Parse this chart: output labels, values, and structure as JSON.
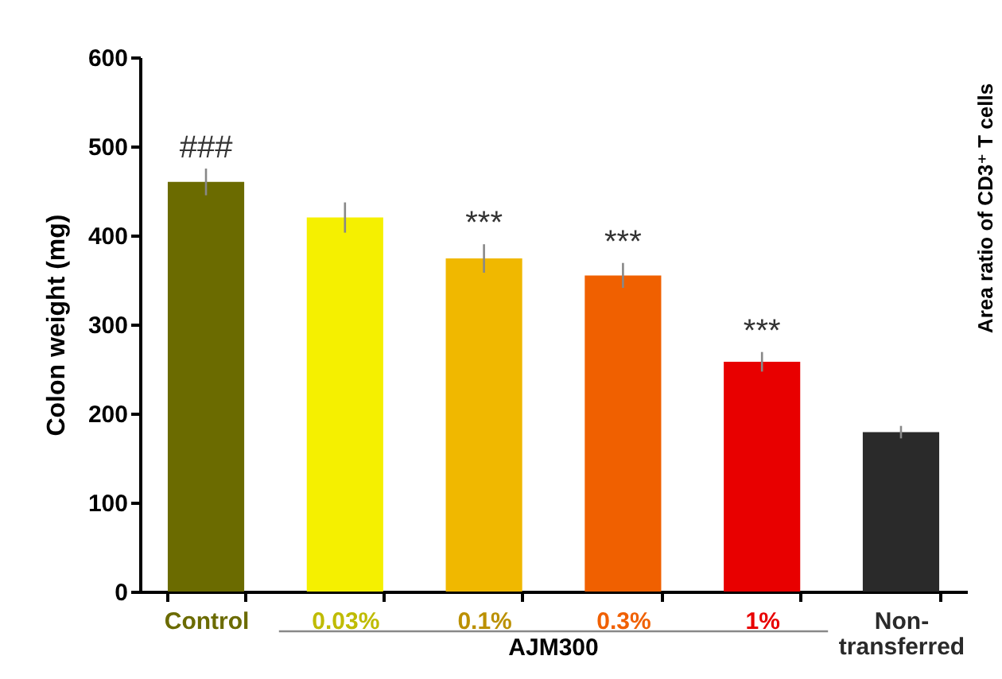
{
  "chart_data": {
    "type": "bar",
    "ylabel": "Colon weight (mg)",
    "categories": [
      "Control",
      "0.03%",
      "0.1%",
      "0.3%",
      "1%",
      "Non-\ntransferred"
    ],
    "values": [
      460,
      420,
      374,
      355,
      258,
      179
    ],
    "errors": [
      15,
      17,
      16,
      14,
      11,
      7
    ],
    "colors": [
      "#6b6b00",
      "#f5f000",
      "#f0b800",
      "#f06000",
      "#e80000",
      "#2a2a2a"
    ],
    "ylim": [
      0,
      600
    ],
    "yticks": [
      0,
      100,
      200,
      300,
      400,
      500,
      600
    ],
    "grid": false,
    "annotations": [
      {
        "text": "###",
        "x": "Control",
        "y": 460
      },
      {
        "text": "***",
        "x": "0.1%",
        "y": 374
      },
      {
        "text": "***",
        "x": "0.3%",
        "y": 355
      },
      {
        "text": "***",
        "x": "1%",
        "y": 258
      },
      "AJM300",
      "Area ratio of CD3⁺ T cells"
    ]
  }
}
